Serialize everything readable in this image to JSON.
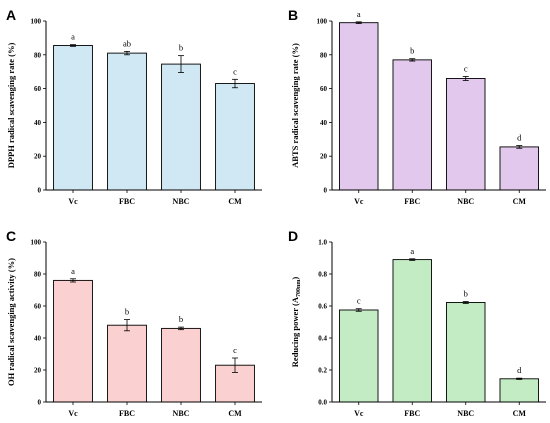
{
  "chart_data": [
    {
      "type": "bar",
      "panel": "A",
      "categories": [
        "Vc",
        "FBC",
        "NBC",
        "CM"
      ],
      "values": [
        85.5,
        81.0,
        74.5,
        63.0
      ],
      "errors": [
        0.5,
        1.0,
        5.0,
        2.5
      ],
      "significance": [
        "a",
        "ab",
        "b",
        "c"
      ],
      "ylabel": "DPPH radical scavenging rate (%)",
      "ylim": [
        0,
        100
      ],
      "yticks": [
        "0",
        "20",
        "40",
        "60",
        "80",
        "100"
      ],
      "bar_color": "#cfe8f3"
    },
    {
      "type": "bar",
      "panel": "B",
      "categories": [
        "Vc",
        "FBC",
        "NBC",
        "CM"
      ],
      "values": [
        99.0,
        77.0,
        66.0,
        25.5
      ],
      "errors": [
        0.5,
        0.7,
        1.2,
        0.8
      ],
      "significance": [
        "a",
        "b",
        "c",
        "d"
      ],
      "ylabel": "ABTS radical scavenging rate (%)",
      "ylim": [
        0,
        100
      ],
      "yticks": [
        "0",
        "20",
        "40",
        "60",
        "80",
        "100"
      ],
      "bar_color": "#e1c8ec"
    },
    {
      "type": "bar",
      "panel": "C",
      "categories": [
        "Vc",
        "FBC",
        "NBC",
        "CM"
      ],
      "values": [
        76.0,
        48.0,
        46.0,
        23.0
      ],
      "errors": [
        1.0,
        3.5,
        0.8,
        4.5
      ],
      "significance": [
        "a",
        "b",
        "b",
        "c"
      ],
      "ylabel": "OH radical scavenging activity (%)",
      "ylim": [
        0,
        100
      ],
      "yticks": [
        "0",
        "20",
        "40",
        "60",
        "80",
        "100"
      ],
      "bar_color": "#fad0d0"
    },
    {
      "type": "bar",
      "panel": "D",
      "categories": [
        "Vc",
        "FBC",
        "NBC",
        "CM"
      ],
      "values": [
        0.575,
        0.89,
        0.622,
        0.145
      ],
      "errors": [
        0.008,
        0.005,
        0.006,
        0.004
      ],
      "significance": [
        "c",
        "a",
        "b",
        "d"
      ],
      "ylabel": "Reducing power (A",
      "ylabel_sub": "700nm",
      "ylabel_end": ")",
      "ylim": [
        0,
        1.0
      ],
      "yticks": [
        "0.0",
        "0.2",
        "0.4",
        "0.6",
        "0.8",
        "1.0"
      ],
      "bar_color": "#c4ecc4"
    }
  ]
}
